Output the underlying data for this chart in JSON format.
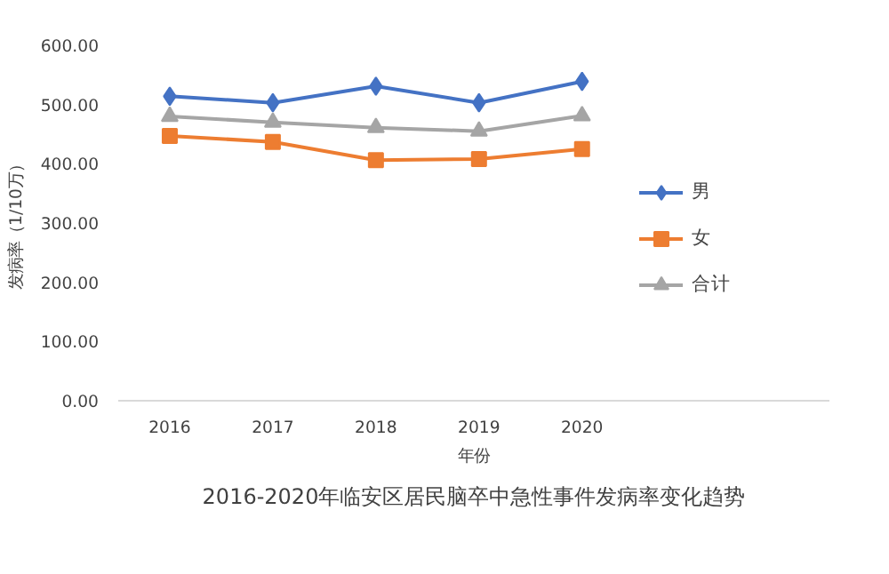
{
  "chart_data": {
    "type": "line",
    "title": "2016-2020年临安区居民脑卒中急性事件发病率变化趋势",
    "xlabel": "年份",
    "ylabel": "发病率（1/10万）",
    "categories": [
      "2016",
      "2017",
      "2018",
      "2019",
      "2020"
    ],
    "series": [
      {
        "name": "男",
        "color": "#4472c4",
        "marker": "diamond",
        "values": [
          514,
          503,
          531,
          503,
          539
        ]
      },
      {
        "name": "女",
        "color": "#ed7d31",
        "marker": "square",
        "values": [
          447,
          437,
          406,
          408,
          425
        ]
      },
      {
        "name": "合计",
        "color": "#a5a5a5",
        "marker": "triangle",
        "values": [
          480,
          470,
          461,
          455,
          481
        ]
      }
    ],
    "ylim": [
      0,
      600
    ],
    "yticks": [
      {
        "value": 0,
        "label": "0.00"
      },
      {
        "value": 100,
        "label": "100.00"
      },
      {
        "value": 200,
        "label": "200.00"
      },
      {
        "value": 300,
        "label": "300.00"
      },
      {
        "value": 400,
        "label": "400.00"
      },
      {
        "value": 500,
        "label": "500.00"
      },
      {
        "value": 600,
        "label": "600.00"
      }
    ],
    "grid": false,
    "legend": "right",
    "line_style": "solid"
  }
}
